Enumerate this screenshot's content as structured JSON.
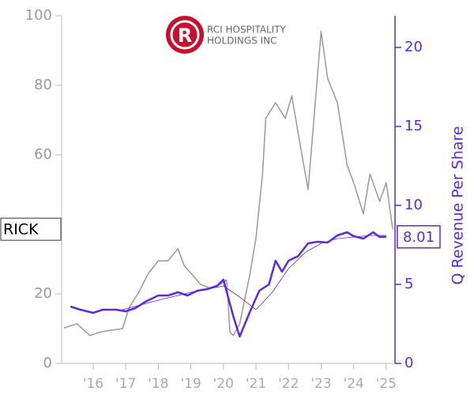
{
  "chart_data": {
    "type": "line",
    "logo_text": [
      "RCI HOSPITALITY",
      "HOLDINGS INC"
    ],
    "y2label": "Q Revenue Per Share",
    "xlim": [
      2015.03,
      2025.27
    ],
    "xticks": [
      {
        "value": 2016,
        "label": "'16"
      },
      {
        "value": 2017,
        "label": "'17"
      },
      {
        "value": 2018,
        "label": "'18"
      },
      {
        "value": 2019,
        "label": "'19"
      },
      {
        "value": 2020,
        "label": "'20"
      },
      {
        "value": 2021,
        "label": "'21"
      },
      {
        "value": 2022,
        "label": "'22"
      },
      {
        "value": 2023,
        "label": "'23"
      },
      {
        "value": 2024,
        "label": "'24"
      },
      {
        "value": 2025,
        "label": "'25"
      }
    ],
    "ylim": [
      0,
      100
    ],
    "yticks": [
      0,
      20,
      40,
      60,
      80,
      100
    ],
    "y2lim": [
      0,
      22
    ],
    "y2ticks": [
      0,
      5,
      10,
      15,
      20
    ],
    "series": [
      {
        "name": "RICK",
        "color": "#999999",
        "width": 1.5,
        "x": [
          2015.1,
          2015.5,
          2015.9,
          2016.2,
          2016.5,
          2016.9,
          2017.1,
          2017.4,
          2017.7,
          2018.0,
          2018.3,
          2018.6,
          2018.8,
          2019.0,
          2019.3,
          2019.6,
          2019.9,
          2020.1,
          2020.2,
          2020.3,
          2020.5,
          2020.8,
          2021.0,
          2021.2,
          2021.3,
          2021.6,
          2021.9,
          2022.1,
          2022.3,
          2022.6,
          2022.8,
          2023.0,
          2023.2,
          2023.5,
          2023.8,
          2024.0,
          2024.3,
          2024.5,
          2024.8,
          2025.0,
          2025.2
        ],
        "values": [
          10.2,
          11.4,
          8,
          9,
          9.5,
          10,
          16,
          20.5,
          26,
          29.5,
          29.5,
          33,
          28,
          26,
          22.7,
          21.6,
          22.7,
          24,
          9,
          8,
          11.4,
          25,
          36,
          54.5,
          70.5,
          75,
          70.5,
          77,
          66,
          50,
          72.7,
          95.5,
          82,
          75,
          57,
          52,
          43,
          54.5,
          46.6,
          52,
          38.6
        ]
      },
      {
        "color": "#5b2be0",
        "width": 2.5,
        "axis": "y2",
        "x": [
          2015.3,
          2015.6,
          2016.0,
          2016.3,
          2016.7,
          2017.0,
          2017.3,
          2017.6,
          2018.0,
          2018.3,
          2018.6,
          2018.9,
          2019.2,
          2019.5,
          2019.8,
          2020.0,
          2020.3,
          2020.5,
          2020.8,
          2021.1,
          2021.4,
          2021.6,
          2021.8,
          2022.0,
          2022.3,
          2022.6,
          2022.9,
          2023.2,
          2023.5,
          2023.8,
          2024.0,
          2024.3,
          2024.6,
          2024.8,
          2025.0
        ],
        "values": [
          3.6,
          3.4,
          3.2,
          3.4,
          3.4,
          3.3,
          3.5,
          3.9,
          4.3,
          4.3,
          4.5,
          4.3,
          4.6,
          4.7,
          4.9,
          5.3,
          3.0,
          1.7,
          3.2,
          4.6,
          5.0,
          6.5,
          5.8,
          6.5,
          6.8,
          7.6,
          7.7,
          7.65,
          8.1,
          8.3,
          8.05,
          7.9,
          8.3,
          8.0,
          8.01
        ]
      },
      {
        "color": "#5b2be0",
        "width": 0.8,
        "axis": "y2",
        "x": [
          2016.9,
          2018.0,
          2019.0,
          2020.0,
          2020.5,
          2021.0,
          2021.5,
          2022.0,
          2022.5,
          2023.0,
          2023.5,
          2024.0,
          2024.5,
          2025.0
        ],
        "values": [
          3.4,
          4.0,
          4.5,
          4.9,
          4.2,
          3.4,
          4.5,
          6.0,
          7.0,
          7.6,
          7.9,
          8.0,
          8.1,
          8.1
        ]
      }
    ]
  }
}
